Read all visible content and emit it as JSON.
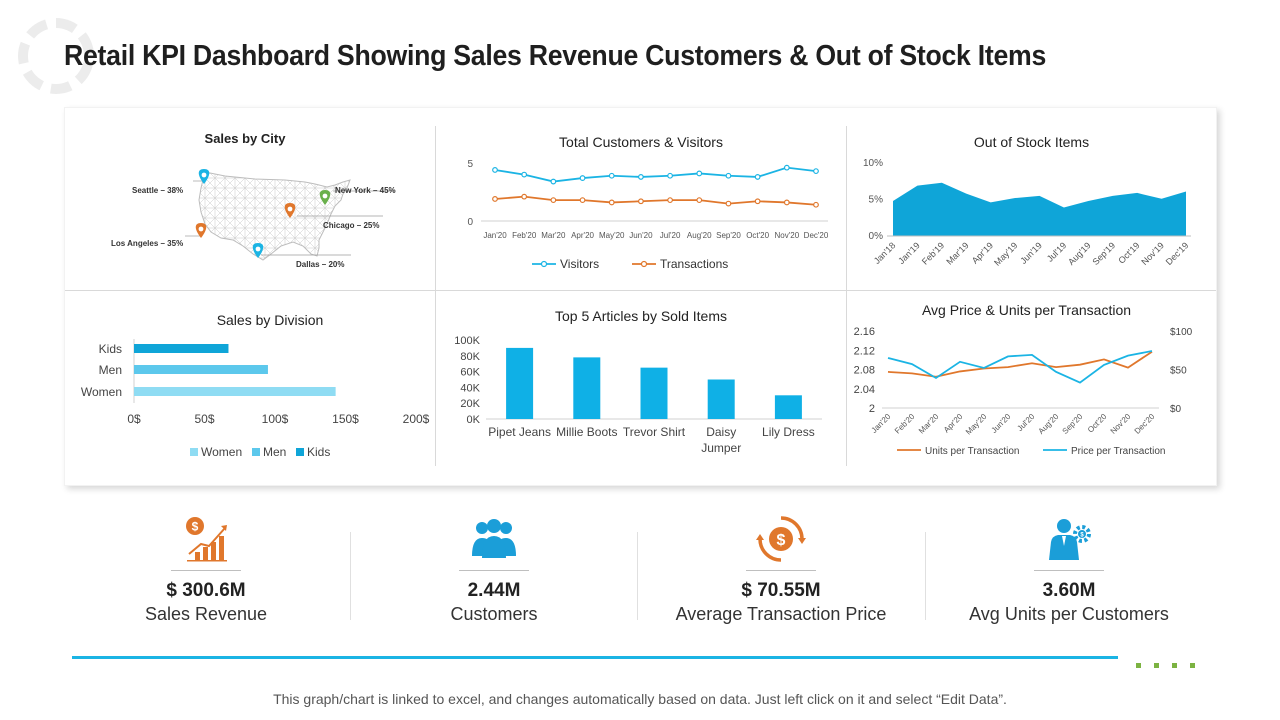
{
  "page": {
    "title": "Retail KPI Dashboard Showing Sales Revenue Customers & Out of Stock Items",
    "footer": "This graph/chart is linked to excel, and changes automatically  based on data.  Just left click  on it and select “Edit Data”."
  },
  "colors": {
    "blue": "#1bb4e4",
    "orange": "#e0772c",
    "green": "#6ab04c",
    "light_blue": "#8fdcf3",
    "mid_blue": "#5cc8ec",
    "dark_blue": "#0fa5d8"
  },
  "kpis": [
    {
      "value": "$ 300.6M",
      "label": "Sales Revenue",
      "icon": "revenue-chart-icon"
    },
    {
      "value": "2.44M",
      "label": "Customers",
      "icon": "customers-group-icon"
    },
    {
      "value": "$ 70.55M",
      "label": "Average Transaction Price",
      "icon": "dollar-cycle-icon"
    },
    {
      "value": "3.60M",
      "label": "Avg Units per Customers",
      "icon": "businessman-gear-icon"
    }
  ],
  "chart_data": [
    {
      "id": "sales_by_city",
      "type": "map",
      "title": "Sales by City",
      "cities": [
        {
          "name": "Seattle",
          "label": "Seattle – 38%",
          "value": 38,
          "pin_color": "#1bb4e4"
        },
        {
          "name": "New York",
          "label": "New York – 45%",
          "value": 45,
          "pin_color": "#6ab04c"
        },
        {
          "name": "Chicago",
          "label": "Chicago – 25%",
          "value": 25,
          "pin_color": "#e0772c"
        },
        {
          "name": "Los Angeles",
          "label": "Los Angeles – 35%",
          "value": 35,
          "pin_color": "#e0772c"
        },
        {
          "name": "Dallas",
          "label": "Dallas – 20%",
          "value": 20,
          "pin_color": "#1bb4e4"
        }
      ]
    },
    {
      "id": "customers_visitors",
      "type": "line",
      "title": "Total Customers & Visitors",
      "categories": [
        "Jan'20",
        "Feb'20",
        "Mar'20",
        "Apr'20",
        "May'20",
        "Jun'20",
        "Jul'20",
        "Aug'20",
        "Sep'20",
        "Oct'20",
        "Nov'20",
        "Dec'20"
      ],
      "ylim": [
        0,
        5
      ],
      "yticks": [
        "5",
        "0"
      ],
      "series": [
        {
          "name": "Visitors",
          "color": "#1bb4e4",
          "values": [
            4.4,
            4.0,
            3.4,
            3.7,
            3.9,
            3.8,
            3.9,
            4.1,
            3.9,
            3.8,
            4.6,
            4.3
          ]
        },
        {
          "name": "Transactions",
          "color": "#e0772c",
          "values": [
            1.9,
            2.1,
            1.8,
            1.8,
            1.6,
            1.7,
            1.8,
            1.8,
            1.5,
            1.7,
            1.6,
            1.4
          ]
        }
      ]
    },
    {
      "id": "out_of_stock",
      "type": "area",
      "title": "Out of Stock Items",
      "categories": [
        "Jan'18",
        "Jan'19",
        "Feb'19",
        "Mar'19",
        "Apr'19",
        "May'19",
        "Jun'19",
        "Jul'19",
        "Aug'19",
        "Sep'19",
        "Oct'19",
        "Nov'19",
        "Dec'19"
      ],
      "ylim": [
        0,
        10
      ],
      "yticks": [
        "10%",
        "5%",
        "0%"
      ],
      "values": [
        4.8,
        6.9,
        7.3,
        5.8,
        4.6,
        5.2,
        5.5,
        3.9,
        4.8,
        5.5,
        5.9,
        5.1,
        6.1
      ]
    },
    {
      "id": "sales_by_division",
      "type": "bar",
      "orientation": "horizontal",
      "title": "Sales by Division",
      "categories": [
        "Kids",
        "Men",
        "Women"
      ],
      "values": [
        67,
        95,
        143
      ],
      "colors": [
        "#0fa5d8",
        "#5cc8ec",
        "#8fdcf3"
      ],
      "xlim": [
        0,
        200
      ],
      "xticks": [
        "0$",
        "50$",
        "100$",
        "150$",
        "200$"
      ],
      "legend": [
        "Women",
        "Men",
        "Kids"
      ]
    },
    {
      "id": "top5_articles",
      "type": "bar",
      "title": "Top 5 Articles by Sold Items",
      "categories": [
        "Pipet Jeans",
        "Millie Boots",
        "Trevor Shirt",
        "Daisy Jumper",
        "Lily Dress"
      ],
      "values": [
        90000,
        78000,
        65000,
        50000,
        30000
      ],
      "ylim": [
        0,
        100000
      ],
      "yticks": [
        "100K",
        "80K",
        "60K",
        "40K",
        "20K",
        "0K"
      ]
    },
    {
      "id": "avg_price_units",
      "type": "line",
      "title": "Avg Price & Units per Transaction",
      "categories": [
        "Jan'20",
        "Feb'20",
        "Mar'20",
        "Apr'20",
        "May'20",
        "Jun'20",
        "Jul'20",
        "Aug'20",
        "Sep'20",
        "Oct'20",
        "Nov'20",
        "Dec'20"
      ],
      "left_ylim": [
        2,
        2.16
      ],
      "left_yticks": [
        "2.16",
        "2.12",
        "2.08",
        "2.04",
        "2"
      ],
      "right_ylim": [
        0,
        100
      ],
      "right_yticks": [
        "$100",
        "$50",
        "$0"
      ],
      "series": [
        {
          "name": "Units per Transaction",
          "axis": "left",
          "color": "#e0772c",
          "values": [
            2.075,
            2.072,
            2.065,
            2.076,
            2.082,
            2.085,
            2.093,
            2.085,
            2.09,
            2.101,
            2.084,
            2.117
          ]
        },
        {
          "name": "Price per Transaction",
          "axis": "right",
          "color": "#1bb4e4",
          "values": [
            65,
            57,
            39,
            60,
            52,
            67,
            69,
            47,
            33,
            56,
            68,
            74
          ]
        }
      ]
    }
  ]
}
